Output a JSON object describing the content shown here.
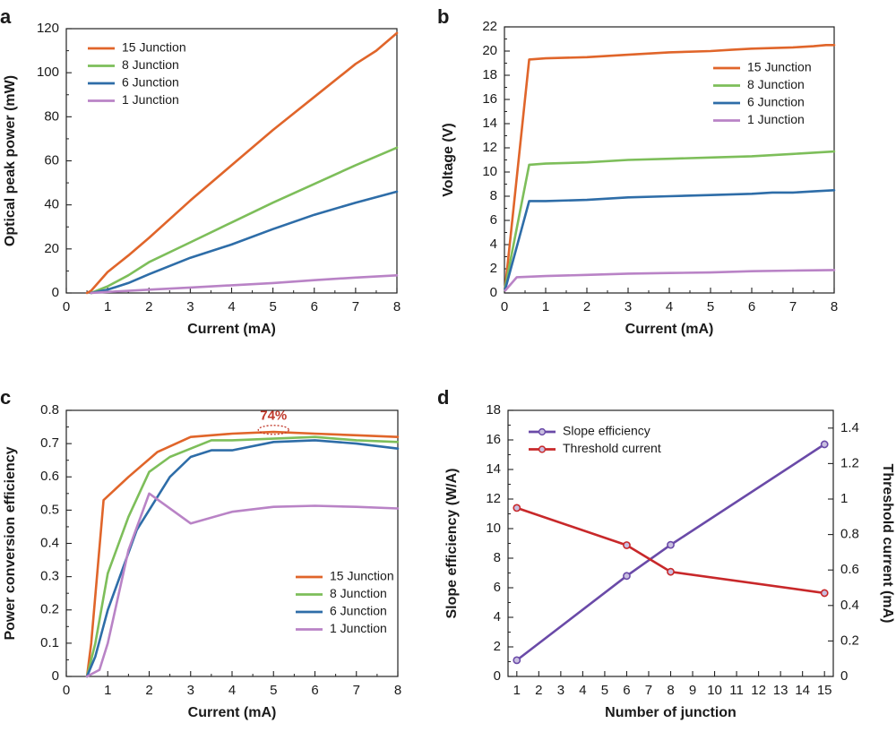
{
  "colors": {
    "junction_15": "#e0652a",
    "junction_8": "#7dbe5a",
    "junction_6": "#2e6da8",
    "junction_1": "#b983c6",
    "slope": "#6a4aa8",
    "threshold": "#c8282a",
    "annotation": "#c0392b"
  },
  "chart_data": [
    {
      "id": "a",
      "panel_label": "a",
      "type": "line",
      "xlabel": "Current (mA)",
      "ylabel": "Optical peak power (mW)",
      "xlim": [
        0,
        8
      ],
      "ylim": [
        0,
        120
      ],
      "xticks": [
        0,
        1,
        2,
        3,
        4,
        5,
        6,
        7,
        8
      ],
      "yticks": [
        0,
        20,
        40,
        60,
        80,
        100,
        120
      ],
      "legend_position": "top-left",
      "series": [
        {
          "name": "15 Junction",
          "color_key": "junction_15",
          "x": [
            0.5,
            0.6,
            1.0,
            1.5,
            2.0,
            3.0,
            4.0,
            5.0,
            6.0,
            7.0,
            7.5,
            8.0
          ],
          "y": [
            0,
            1,
            9.5,
            17,
            25,
            42,
            58,
            74,
            89,
            104,
            110,
            118
          ]
        },
        {
          "name": "8 Junction",
          "color_key": "junction_8",
          "x": [
            0.6,
            1.0,
            1.5,
            2.0,
            3.0,
            4.0,
            5.0,
            6.0,
            7.0,
            8.0
          ],
          "y": [
            0,
            3,
            8,
            14,
            23,
            32,
            41,
            49.5,
            58,
            66
          ]
        },
        {
          "name": "6 Junction",
          "color_key": "junction_6",
          "x": [
            0.6,
            1.0,
            1.5,
            2.0,
            3.0,
            4.0,
            5.0,
            6.0,
            7.0,
            8.0
          ],
          "y": [
            0,
            1.5,
            4.5,
            8.5,
            16,
            22,
            29,
            35.5,
            41,
            46
          ]
        },
        {
          "name": "1 Junction",
          "color_key": "junction_1",
          "x": [
            0.6,
            1.0,
            2.0,
            3.0,
            4.0,
            5.0,
            6.0,
            7.0,
            8.0
          ],
          "y": [
            0,
            0.5,
            1.5,
            2.5,
            3.5,
            4.5,
            5.8,
            7,
            8
          ]
        }
      ]
    },
    {
      "id": "b",
      "panel_label": "b",
      "type": "line",
      "xlabel": "Current (mA)",
      "ylabel": "Voltage (V)",
      "xlim": [
        0,
        8
      ],
      "ylim": [
        0,
        22
      ],
      "xticks": [
        0,
        1,
        2,
        3,
        4,
        5,
        6,
        7,
        8
      ],
      "yticks": [
        0,
        2,
        4,
        6,
        8,
        10,
        12,
        14,
        16,
        18,
        20,
        22
      ],
      "legend_position": "right",
      "series": [
        {
          "name": "15 Junction",
          "color_key": "junction_15",
          "x": [
            0.02,
            0.6,
            1.0,
            2.0,
            3.0,
            4.0,
            5.0,
            5.5,
            6.0,
            7.0,
            7.5,
            7.8,
            8.0
          ],
          "y": [
            0.5,
            19.3,
            19.4,
            19.5,
            19.7,
            19.9,
            20.0,
            20.1,
            20.2,
            20.3,
            20.4,
            20.5,
            20.5
          ]
        },
        {
          "name": "8 Junction",
          "color_key": "junction_8",
          "x": [
            0.02,
            0.6,
            1.0,
            2.0,
            3.0,
            4.0,
            5.0,
            6.0,
            7.0,
            8.0
          ],
          "y": [
            0.5,
            10.6,
            10.7,
            10.8,
            11.0,
            11.1,
            11.2,
            11.3,
            11.5,
            11.7
          ]
        },
        {
          "name": "6 Junction",
          "color_key": "junction_6",
          "x": [
            0.02,
            0.6,
            1.0,
            2.0,
            3.0,
            4.0,
            5.0,
            6.0,
            6.5,
            7.0,
            7.5,
            8.0
          ],
          "y": [
            0.3,
            7.6,
            7.6,
            7.7,
            7.9,
            8.0,
            8.1,
            8.2,
            8.3,
            8.3,
            8.4,
            8.5
          ]
        },
        {
          "name": "1 Junction",
          "color_key": "junction_1",
          "x": [
            0.02,
            0.3,
            1.0,
            2.0,
            3.0,
            4.0,
            5.0,
            6.0,
            7.0,
            8.0
          ],
          "y": [
            0.2,
            1.3,
            1.4,
            1.5,
            1.6,
            1.65,
            1.7,
            1.8,
            1.85,
            1.9
          ]
        }
      ]
    },
    {
      "id": "c",
      "panel_label": "c",
      "type": "line",
      "xlabel": "Current (mA)",
      "ylabel": "Power conversion efficiency",
      "xlim": [
        0,
        8
      ],
      "ylim": [
        0,
        0.8
      ],
      "xticks": [
        0,
        1,
        2,
        3,
        4,
        5,
        6,
        7,
        8
      ],
      "yticks": [
        0,
        0.1,
        0.2,
        0.3,
        0.4,
        0.5,
        0.6,
        0.7,
        0.8
      ],
      "legend_position": "bottom-right",
      "annotation": {
        "text": "74%",
        "x": 5.0,
        "y": 0.74
      },
      "series": [
        {
          "name": "15 Junction",
          "color_key": "junction_15",
          "x": [
            0.5,
            0.6,
            0.9,
            1.5,
            2.2,
            3.0,
            4.0,
            5.0,
            6.0,
            7.0,
            8.0
          ],
          "y": [
            0,
            0.1,
            0.53,
            0.6,
            0.675,
            0.72,
            0.73,
            0.735,
            0.73,
            0.725,
            0.72
          ]
        },
        {
          "name": "8 Junction",
          "color_key": "junction_8",
          "x": [
            0.5,
            0.7,
            1.0,
            1.5,
            2.0,
            2.5,
            3.0,
            3.5,
            4.0,
            5.0,
            6.0,
            7.0,
            8.0
          ],
          "y": [
            0,
            0.1,
            0.31,
            0.48,
            0.615,
            0.66,
            0.685,
            0.71,
            0.71,
            0.715,
            0.72,
            0.71,
            0.705
          ]
        },
        {
          "name": "6 Junction",
          "color_key": "junction_6",
          "x": [
            0.5,
            0.7,
            1.0,
            1.7,
            2.5,
            3.0,
            3.5,
            4.0,
            5.0,
            6.0,
            7.0,
            8.0
          ],
          "y": [
            0,
            0.06,
            0.2,
            0.44,
            0.6,
            0.66,
            0.68,
            0.68,
            0.705,
            0.71,
            0.7,
            0.685
          ]
        },
        {
          "name": "1 Junction",
          "color_key": "junction_1",
          "x": [
            0.5,
            0.8,
            1.0,
            1.5,
            2.0,
            3.0,
            4.0,
            5.0,
            6.0,
            7.0,
            8.0
          ],
          "y": [
            0,
            0.02,
            0.1,
            0.38,
            0.55,
            0.46,
            0.495,
            0.51,
            0.513,
            0.51,
            0.505
          ]
        }
      ]
    },
    {
      "id": "d",
      "panel_label": "d",
      "type": "line",
      "xlabel": "Number of junction",
      "ylabel": "Slope efficiency (W/A)",
      "ylabel_right": "Threshold current (mA)",
      "xlim": [
        0.6,
        15.4
      ],
      "ylim": [
        0,
        18
      ],
      "ylim_right": [
        0,
        1.5
      ],
      "xticks": [
        1,
        2,
        3,
        4,
        5,
        6,
        7,
        8,
        9,
        10,
        11,
        12,
        13,
        14,
        15
      ],
      "yticks": [
        0,
        2,
        4,
        6,
        8,
        10,
        12,
        14,
        16,
        18
      ],
      "yticks_right": [
        0,
        0.2,
        0.4,
        0.6,
        0.8,
        1,
        1.2,
        1.4
      ],
      "legend_position": "top-left",
      "series": [
        {
          "name": "Slope efficiency",
          "color_key": "slope",
          "axis": "left",
          "markers": true,
          "x": [
            1,
            6,
            8,
            15
          ],
          "y": [
            1.1,
            6.8,
            8.9,
            15.7
          ]
        },
        {
          "name": "Threshold current",
          "color_key": "threshold",
          "axis": "right",
          "markers": true,
          "x": [
            1,
            6,
            8,
            15
          ],
          "y": [
            0.95,
            0.74,
            0.59,
            0.47
          ]
        }
      ]
    }
  ]
}
